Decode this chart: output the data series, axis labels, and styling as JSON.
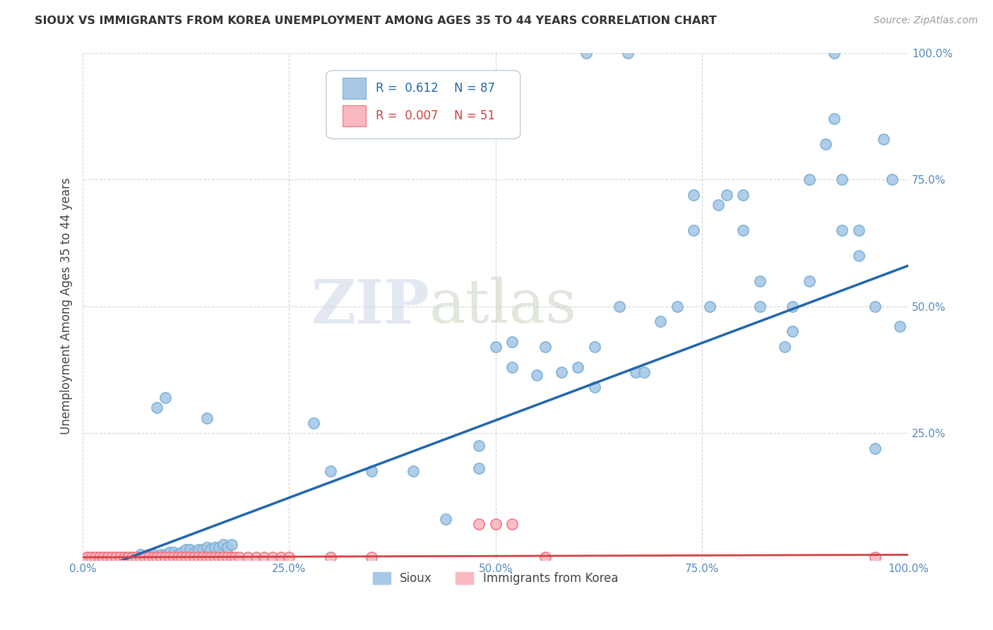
{
  "title": "SIOUX VS IMMIGRANTS FROM KOREA UNEMPLOYMENT AMONG AGES 35 TO 44 YEARS CORRELATION CHART",
  "source_text": "Source: ZipAtlas.com",
  "ylabel": "Unemployment Among Ages 35 to 44 years",
  "xlim": [
    0.0,
    1.0
  ],
  "ylim": [
    0.0,
    1.0
  ],
  "xticks": [
    0.0,
    0.25,
    0.5,
    0.75,
    1.0
  ],
  "xticklabels": [
    "0.0%",
    "25.0%",
    "50.0%",
    "75.0%",
    "100.0%"
  ],
  "yticks": [
    0.25,
    0.5,
    0.75,
    1.0
  ],
  "yticklabels": [
    "25.0%",
    "50.0%",
    "75.0%",
    "100.0%"
  ],
  "watermark_zip": "ZIP",
  "watermark_atlas": "atlas",
  "sioux_color": "#a8c8e8",
  "sioux_edge_color": "#7aafd4",
  "korea_color": "#f9b8c0",
  "korea_edge_color": "#f07080",
  "sioux_line_color": "#2166ac",
  "korea_line_color": "#d44040",
  "background_color": "#ffffff",
  "grid_color": "#cccccc",
  "tick_color": "#5588bb",
  "legend_box_color": "#e8f0f8",
  "legend_box_edge": "#bbccdd",
  "sioux_scatter": [
    [
      0.005,
      0.005
    ],
    [
      0.01,
      0.005
    ],
    [
      0.015,
      0.005
    ],
    [
      0.02,
      0.005
    ],
    [
      0.025,
      0.005
    ],
    [
      0.03,
      0.005
    ],
    [
      0.035,
      0.005
    ],
    [
      0.04,
      0.005
    ],
    [
      0.045,
      0.005
    ],
    [
      0.05,
      0.005
    ],
    [
      0.055,
      0.005
    ],
    [
      0.06,
      0.005
    ],
    [
      0.065,
      0.005
    ],
    [
      0.07,
      0.01
    ],
    [
      0.075,
      0.005
    ],
    [
      0.08,
      0.01
    ],
    [
      0.085,
      0.01
    ],
    [
      0.09,
      0.005
    ],
    [
      0.095,
      0.01
    ],
    [
      0.1,
      0.01
    ],
    [
      0.105,
      0.015
    ],
    [
      0.11,
      0.015
    ],
    [
      0.115,
      0.01
    ],
    [
      0.12,
      0.015
    ],
    [
      0.125,
      0.02
    ],
    [
      0.13,
      0.02
    ],
    [
      0.135,
      0.015
    ],
    [
      0.14,
      0.02
    ],
    [
      0.145,
      0.02
    ],
    [
      0.15,
      0.025
    ],
    [
      0.155,
      0.02
    ],
    [
      0.16,
      0.025
    ],
    [
      0.165,
      0.025
    ],
    [
      0.17,
      0.03
    ],
    [
      0.175,
      0.025
    ],
    [
      0.18,
      0.03
    ],
    [
      0.09,
      0.3
    ],
    [
      0.1,
      0.32
    ],
    [
      0.15,
      0.28
    ],
    [
      0.28,
      0.27
    ],
    [
      0.3,
      0.175
    ],
    [
      0.35,
      0.175
    ],
    [
      0.4,
      0.175
    ],
    [
      0.44,
      0.08
    ],
    [
      0.48,
      0.225
    ],
    [
      0.48,
      0.18
    ],
    [
      0.5,
      0.42
    ],
    [
      0.52,
      0.38
    ],
    [
      0.52,
      0.43
    ],
    [
      0.55,
      0.365
    ],
    [
      0.56,
      0.42
    ],
    [
      0.58,
      0.37
    ],
    [
      0.6,
      0.38
    ],
    [
      0.62,
      0.34
    ],
    [
      0.62,
      0.42
    ],
    [
      0.65,
      0.5
    ],
    [
      0.67,
      0.37
    ],
    [
      0.68,
      0.37
    ],
    [
      0.7,
      0.47
    ],
    [
      0.72,
      0.5
    ],
    [
      0.74,
      0.65
    ],
    [
      0.74,
      0.72
    ],
    [
      0.76,
      0.5
    ],
    [
      0.77,
      0.7
    ],
    [
      0.78,
      0.72
    ],
    [
      0.8,
      0.72
    ],
    [
      0.8,
      0.65
    ],
    [
      0.82,
      0.5
    ],
    [
      0.82,
      0.55
    ],
    [
      0.85,
      0.42
    ],
    [
      0.86,
      0.45
    ],
    [
      0.86,
      0.5
    ],
    [
      0.88,
      0.55
    ],
    [
      0.88,
      0.75
    ],
    [
      0.9,
      0.82
    ],
    [
      0.91,
      0.87
    ],
    [
      0.92,
      0.75
    ],
    [
      0.92,
      0.65
    ],
    [
      0.94,
      0.6
    ],
    [
      0.94,
      0.65
    ],
    [
      0.96,
      0.22
    ],
    [
      0.96,
      0.5
    ],
    [
      0.97,
      0.83
    ],
    [
      0.98,
      0.75
    ],
    [
      0.99,
      0.46
    ],
    [
      0.61,
      1.0
    ],
    [
      0.66,
      1.0
    ],
    [
      0.91,
      1.0
    ]
  ],
  "korea_scatter": [
    [
      0.005,
      0.005
    ],
    [
      0.01,
      0.005
    ],
    [
      0.015,
      0.005
    ],
    [
      0.02,
      0.005
    ],
    [
      0.025,
      0.005
    ],
    [
      0.03,
      0.005
    ],
    [
      0.035,
      0.005
    ],
    [
      0.04,
      0.005
    ],
    [
      0.045,
      0.005
    ],
    [
      0.05,
      0.005
    ],
    [
      0.055,
      0.005
    ],
    [
      0.06,
      0.005
    ],
    [
      0.065,
      0.005
    ],
    [
      0.07,
      0.005
    ],
    [
      0.075,
      0.005
    ],
    [
      0.08,
      0.005
    ],
    [
      0.085,
      0.005
    ],
    [
      0.09,
      0.005
    ],
    [
      0.095,
      0.005
    ],
    [
      0.1,
      0.005
    ],
    [
      0.105,
      0.005
    ],
    [
      0.11,
      0.005
    ],
    [
      0.115,
      0.005
    ],
    [
      0.12,
      0.005
    ],
    [
      0.125,
      0.005
    ],
    [
      0.13,
      0.005
    ],
    [
      0.135,
      0.005
    ],
    [
      0.14,
      0.005
    ],
    [
      0.145,
      0.005
    ],
    [
      0.15,
      0.005
    ],
    [
      0.155,
      0.005
    ],
    [
      0.16,
      0.005
    ],
    [
      0.165,
      0.005
    ],
    [
      0.17,
      0.005
    ],
    [
      0.175,
      0.005
    ],
    [
      0.18,
      0.005
    ],
    [
      0.185,
      0.005
    ],
    [
      0.19,
      0.005
    ],
    [
      0.2,
      0.005
    ],
    [
      0.21,
      0.005
    ],
    [
      0.22,
      0.005
    ],
    [
      0.23,
      0.005
    ],
    [
      0.24,
      0.005
    ],
    [
      0.25,
      0.005
    ],
    [
      0.3,
      0.005
    ],
    [
      0.35,
      0.005
    ],
    [
      0.48,
      0.07
    ],
    [
      0.5,
      0.07
    ],
    [
      0.52,
      0.07
    ],
    [
      0.56,
      0.005
    ],
    [
      0.96,
      0.005
    ]
  ],
  "sioux_reg": [
    0.0,
    1.0,
    -0.03,
    0.58
  ],
  "korea_reg": [
    0.0,
    1.0,
    0.005,
    0.01
  ]
}
